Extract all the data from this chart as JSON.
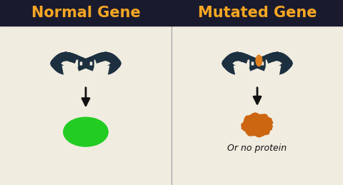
{
  "bg_color": "#f0ece0",
  "header_bg": "#1a1a2e",
  "header_text_left": "Normal Gene",
  "header_text_right": "Mutated Gene",
  "header_text_color": "#f5a623",
  "header_font_size": 15,
  "divider_color": "#aaaaaa",
  "dna_color": "#1c3040",
  "dna_stripe_color": "#f0ece0",
  "arrow_color": "#111111",
  "green_blob_color": "#22cc22",
  "orange_blob_color": "#cc6611",
  "mutation_color": "#e08020",
  "label_text": "Or no protein",
  "label_font_size": 9,
  "label_color": "#111111"
}
